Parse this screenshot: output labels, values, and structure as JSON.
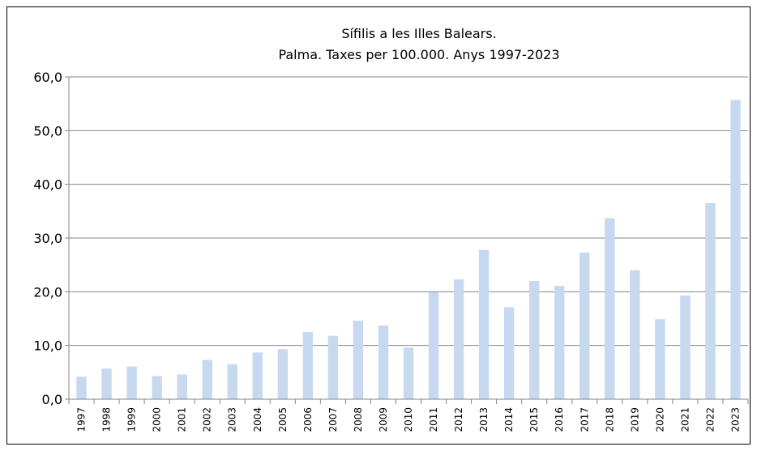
{
  "chart_data": {
    "type": "bar",
    "title": "Sífilis a les Illes Balears.",
    "subtitle": "Palma. Taxes  per 100.000. Anys 1997-2023",
    "xlabel": "",
    "ylabel": "",
    "categories": [
      "1997",
      "1998",
      "1999",
      "2000",
      "2001",
      "2002",
      "2003",
      "2004",
      "2005",
      "2006",
      "2007",
      "2008",
      "2009",
      "2010",
      "2011",
      "2012",
      "2013",
      "2014",
      "2015",
      "2016",
      "2017",
      "2018",
      "2019",
      "2020",
      "2021",
      "2022",
      "2023"
    ],
    "values": [
      4.2,
      5.7,
      6.1,
      4.3,
      4.6,
      7.3,
      6.5,
      8.7,
      9.3,
      12.5,
      11.8,
      14.6,
      13.7,
      9.6,
      19.9,
      22.3,
      27.8,
      17.1,
      22.0,
      21.1,
      27.3,
      33.7,
      24.0,
      14.9,
      19.3,
      36.5,
      55.7
    ],
    "ylim": [
      0,
      60
    ],
    "yticks": [
      "0,0",
      "10,0",
      "20,0",
      "30,0",
      "40,0",
      "50,0",
      "60,0"
    ],
    "grid": true,
    "legend": "none",
    "colors": {
      "bar": "#c6d9f1",
      "grid": "#868686",
      "axis": "#868686"
    }
  }
}
